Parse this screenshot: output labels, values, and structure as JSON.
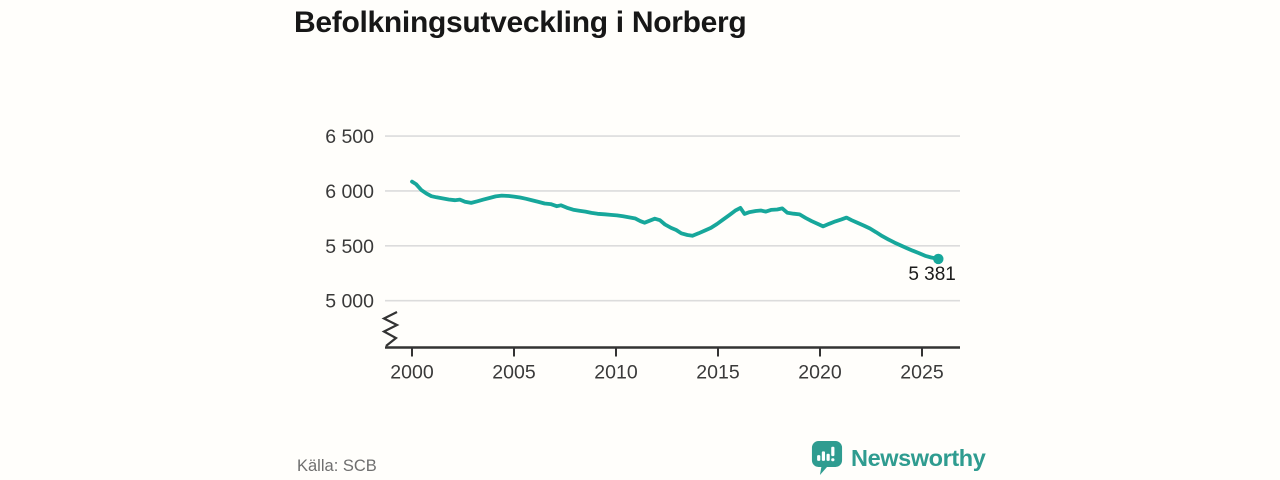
{
  "title": "Befolkningsutveckling i Norberg",
  "source": "Källa: SCB",
  "branding": {
    "name": "Newsworthy",
    "logo_icon": "newsworthy-speech-bubble-bar-chart-icon",
    "color": "#2f9c90"
  },
  "colors": {
    "line": "#17a79b",
    "grid": "#dcdcdc",
    "axis": "#333333",
    "tick_text": "#3a3a3a",
    "title_text": "#171717",
    "muted_text": "#6f6f6f",
    "background": "#fffefb"
  },
  "chart_data": {
    "type": "line",
    "title": "Befolkningsutveckling i Norberg",
    "xlabel": "",
    "ylabel": "",
    "legend": "none",
    "grid": "horizontal",
    "axis_break": true,
    "ylim": [
      5000,
      6500
    ],
    "xlim": [
      2000,
      2026
    ],
    "x_ticks": [
      2000,
      2005,
      2010,
      2015,
      2020,
      2025
    ],
    "y_ticks": [
      {
        "value": 5000,
        "label": "5 000"
      },
      {
        "value": 5500,
        "label": "5 500"
      },
      {
        "value": 6000,
        "label": "6 000"
      },
      {
        "value": 6500,
        "label": "6 500"
      }
    ],
    "end_label": "5 381",
    "end_value": 5381,
    "series": [
      {
        "name": "Befolkning i Norberg",
        "points": [
          [
            2000.0,
            6085
          ],
          [
            2000.2,
            6062
          ],
          [
            2000.45,
            6010
          ],
          [
            2000.7,
            5978
          ],
          [
            2000.95,
            5952
          ],
          [
            2001.2,
            5942
          ],
          [
            2001.5,
            5932
          ],
          [
            2001.8,
            5922
          ],
          [
            2002.1,
            5916
          ],
          [
            2002.35,
            5921
          ],
          [
            2002.6,
            5902
          ],
          [
            2002.9,
            5891
          ],
          [
            2003.2,
            5906
          ],
          [
            2003.5,
            5921
          ],
          [
            2003.8,
            5936
          ],
          [
            2004.1,
            5950
          ],
          [
            2004.4,
            5958
          ],
          [
            2004.75,
            5954
          ],
          [
            2005.0,
            5949
          ],
          [
            2005.3,
            5940
          ],
          [
            2005.6,
            5929
          ],
          [
            2005.9,
            5914
          ],
          [
            2006.2,
            5900
          ],
          [
            2006.5,
            5886
          ],
          [
            2006.8,
            5880
          ],
          [
            2007.1,
            5861
          ],
          [
            2007.3,
            5869
          ],
          [
            2007.6,
            5847
          ],
          [
            2007.9,
            5829
          ],
          [
            2008.2,
            5820
          ],
          [
            2008.5,
            5812
          ],
          [
            2008.8,
            5800
          ],
          [
            2009.1,
            5792
          ],
          [
            2009.45,
            5787
          ],
          [
            2009.75,
            5782
          ],
          [
            2010.05,
            5777
          ],
          [
            2010.35,
            5769
          ],
          [
            2010.65,
            5759
          ],
          [
            2010.95,
            5749
          ],
          [
            2011.2,
            5724
          ],
          [
            2011.4,
            5711
          ],
          [
            2011.65,
            5729
          ],
          [
            2011.9,
            5747
          ],
          [
            2012.15,
            5734
          ],
          [
            2012.4,
            5694
          ],
          [
            2012.7,
            5663
          ],
          [
            2012.95,
            5644
          ],
          [
            2013.2,
            5614
          ],
          [
            2013.5,
            5599
          ],
          [
            2013.75,
            5591
          ],
          [
            2014.05,
            5614
          ],
          [
            2014.35,
            5639
          ],
          [
            2014.65,
            5663
          ],
          [
            2014.95,
            5699
          ],
          [
            2015.25,
            5739
          ],
          [
            2015.55,
            5779
          ],
          [
            2015.85,
            5821
          ],
          [
            2016.1,
            5846
          ],
          [
            2016.3,
            5791
          ],
          [
            2016.55,
            5807
          ],
          [
            2016.85,
            5817
          ],
          [
            2017.1,
            5822
          ],
          [
            2017.35,
            5812
          ],
          [
            2017.6,
            5827
          ],
          [
            2017.9,
            5831
          ],
          [
            2018.15,
            5841
          ],
          [
            2018.4,
            5801
          ],
          [
            2018.7,
            5793
          ],
          [
            2019.0,
            5786
          ],
          [
            2019.3,
            5754
          ],
          [
            2019.6,
            5724
          ],
          [
            2019.9,
            5699
          ],
          [
            2020.15,
            5677
          ],
          [
            2020.45,
            5701
          ],
          [
            2020.75,
            5723
          ],
          [
            2021.05,
            5741
          ],
          [
            2021.3,
            5757
          ],
          [
            2021.55,
            5734
          ],
          [
            2021.85,
            5709
          ],
          [
            2022.15,
            5684
          ],
          [
            2022.45,
            5658
          ],
          [
            2022.75,
            5624
          ],
          [
            2023.05,
            5589
          ],
          [
            2023.35,
            5559
          ],
          [
            2023.65,
            5529
          ],
          [
            2023.95,
            5504
          ],
          [
            2024.25,
            5479
          ],
          [
            2024.55,
            5456
          ],
          [
            2024.85,
            5434
          ],
          [
            2025.15,
            5409
          ],
          [
            2025.45,
            5394
          ],
          [
            2025.8,
            5381
          ]
        ]
      }
    ]
  }
}
